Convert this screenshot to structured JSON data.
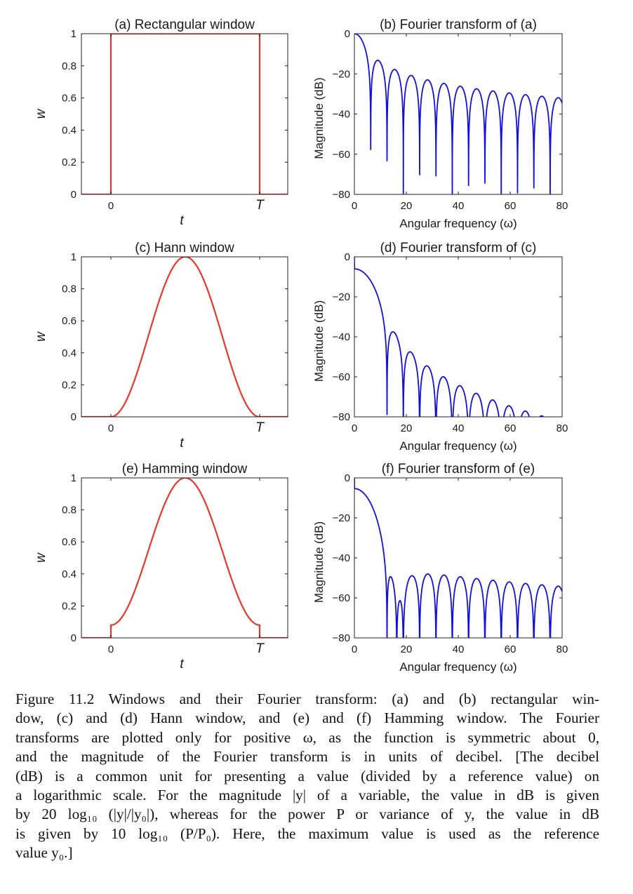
{
  "chart_data": [
    {
      "id": "a",
      "type": "line",
      "kind": "window",
      "shape": "rect",
      "title": "(a)  Rectangular window",
      "xlabel": "t",
      "ylabel": "w",
      "x_ticks": [
        "0",
        "T"
      ],
      "y_ticks": [
        "0",
        "0.2",
        "0.4",
        "0.6",
        "0.8",
        "1"
      ],
      "ylim": [
        0,
        1
      ],
      "color": "#e8372c"
    },
    {
      "id": "b",
      "type": "line",
      "kind": "spectrum",
      "shape": "rect",
      "title": "(b)  Fourier transform of (a)",
      "xlabel": "Angular frequency (ω)",
      "ylabel": "Magnitude (dB)",
      "x_ticks": [
        "0",
        "20",
        "40",
        "60",
        "80"
      ],
      "y_ticks": [
        "−80",
        "−60",
        "−40",
        "−20",
        "0"
      ],
      "xlim": [
        0,
        80
      ],
      "ylim": [
        -80,
        0
      ],
      "color": "#1010e0"
    },
    {
      "id": "c",
      "type": "line",
      "kind": "window",
      "shape": "hann",
      "title": "(c)  Hann window",
      "xlabel": "t",
      "ylabel": "w",
      "x_ticks": [
        "0",
        "T"
      ],
      "y_ticks": [
        "0",
        "0.2",
        "0.4",
        "0.6",
        "0.8",
        "1"
      ],
      "ylim": [
        0,
        1
      ],
      "color": "#e8372c"
    },
    {
      "id": "d",
      "type": "line",
      "kind": "spectrum",
      "shape": "hann",
      "title": "(d)  Fourier transform of (c)",
      "xlabel": "Angular frequency (ω)",
      "ylabel": "Magnitude (dB)",
      "x_ticks": [
        "0",
        "20",
        "40",
        "60",
        "80"
      ],
      "y_ticks": [
        "−80",
        "−60",
        "−40",
        "−20",
        "0"
      ],
      "xlim": [
        0,
        80
      ],
      "ylim": [
        -80,
        0
      ],
      "color": "#1010e0"
    },
    {
      "id": "e",
      "type": "line",
      "kind": "window",
      "shape": "hamming",
      "title": "(e)  Hamming window",
      "xlabel": "t",
      "ylabel": "w",
      "x_ticks": [
        "0",
        "T"
      ],
      "y_ticks": [
        "0",
        "0.2",
        "0.4",
        "0.6",
        "0.8",
        "1"
      ],
      "ylim": [
        0,
        1
      ],
      "color": "#e8372c"
    },
    {
      "id": "f",
      "type": "line",
      "kind": "spectrum",
      "shape": "hamming",
      "title": "(f)  Fourier transform of (e)",
      "xlabel": "Angular frequency (ω)",
      "ylabel": "Magnitude (dB)",
      "x_ticks": [
        "0",
        "20",
        "40",
        "60",
        "80"
      ],
      "y_ticks": [
        "−80",
        "−60",
        "−40",
        "−20",
        "0"
      ],
      "xlim": [
        0,
        80
      ],
      "ylim": [
        -80,
        0
      ],
      "color": "#1010e0"
    }
  ],
  "caption": {
    "lines": [
      "Figure 11.2 Windows and their Fourier transform: (a) and (b) rectangular win-",
      "dow, (c) and (d) Hann window, and (e) and (f) Hamming window. The Fourier",
      "transforms are plotted only for positive ω, as the function is symmetric about 0,",
      "and the magnitude of the Fourier transform is in units of decibel. [The decibel",
      "(dB) is a common unit for presenting a value (divided by a reference value) on",
      "a logarithmic scale. For the magnitude |y| of a variable, the value in dB is given",
      "by 20 log₁₀ (|y|/|y₀|), whereas for the power P or variance of y, the value in dB",
      "is given by 10 log₁₀ (P/P₀). Here, the maximum value is used as the reference",
      "value y₀.]"
    ]
  }
}
